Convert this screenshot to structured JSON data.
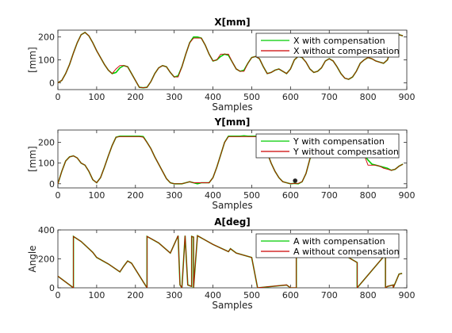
{
  "chart_data": [
    {
      "type": "line",
      "title": "X[mm]",
      "xlabel": "Samples",
      "ylabel": "[mm]",
      "xlim": [
        0,
        900
      ],
      "ylim": [
        -30,
        230
      ],
      "xticks": [
        0,
        100,
        200,
        300,
        400,
        500,
        600,
        700,
        800,
        900
      ],
      "yticks": [
        0,
        100,
        200
      ],
      "legend_position": "top-right",
      "grid": false,
      "series": [
        {
          "name": "X with compensation",
          "color": "#00cc00",
          "x": [
            0,
            10,
            20,
            30,
            40,
            50,
            60,
            70,
            80,
            90,
            100,
            110,
            120,
            130,
            140,
            150,
            160,
            170,
            180,
            190,
            200,
            210,
            220,
            230,
            240,
            250,
            260,
            270,
            280,
            290,
            300,
            310,
            320,
            330,
            340,
            350,
            360,
            370,
            380,
            390,
            400,
            410,
            420,
            430,
            440,
            450,
            460,
            470,
            480,
            490,
            500,
            510,
            520,
            530,
            540,
            550,
            560,
            570,
            580,
            590,
            600,
            610,
            620,
            630,
            640,
            650,
            660,
            670,
            680,
            690,
            700,
            710,
            720,
            730,
            740,
            750,
            760,
            770,
            780,
            790,
            800,
            810,
            820,
            830,
            840,
            850,
            860,
            870,
            880,
            890
          ],
          "values": [
            0,
            10,
            40,
            80,
            130,
            175,
            210,
            220,
            205,
            175,
            140,
            110,
            80,
            55,
            40,
            45,
            65,
            75,
            70,
            40,
            10,
            -20,
            -22,
            -20,
            5,
            40,
            65,
            75,
            70,
            45,
            25,
            30,
            70,
            125,
            175,
            200,
            200,
            195,
            165,
            125,
            95,
            100,
            115,
            125,
            120,
            90,
            60,
            50,
            55,
            85,
            110,
            115,
            105,
            70,
            40,
            45,
            55,
            60,
            50,
            40,
            60,
            100,
            115,
            110,
            90,
            60,
            45,
            50,
            65,
            95,
            105,
            95,
            70,
            40,
            20,
            15,
            25,
            50,
            85,
            100,
            110,
            105,
            95,
            90,
            85,
            100,
            150,
            200,
            210,
            205
          ]
        },
        {
          "name": "X without compensation",
          "color": "#cc0000",
          "x": [
            0,
            10,
            20,
            30,
            40,
            50,
            60,
            70,
            80,
            90,
            100,
            110,
            120,
            130,
            140,
            150,
            160,
            170,
            180,
            190,
            200,
            210,
            220,
            230,
            240,
            250,
            260,
            270,
            280,
            290,
            300,
            310,
            320,
            330,
            340,
            350,
            360,
            370,
            380,
            390,
            400,
            410,
            420,
            430,
            440,
            450,
            460,
            470,
            480,
            490,
            500,
            510,
            520,
            530,
            540,
            550,
            560,
            570,
            580,
            590,
            600,
            610,
            620,
            630,
            640,
            650,
            660,
            670,
            680,
            690,
            700,
            710,
            720,
            730,
            740,
            750,
            760,
            770,
            780,
            790,
            800,
            810,
            820,
            830,
            840,
            850,
            860,
            870,
            880,
            890
          ],
          "values": [
            0,
            10,
            40,
            80,
            130,
            175,
            210,
            220,
            205,
            175,
            140,
            110,
            80,
            55,
            40,
            60,
            75,
            75,
            70,
            40,
            10,
            -20,
            -22,
            -20,
            5,
            40,
            65,
            75,
            70,
            45,
            25,
            25,
            70,
            125,
            175,
            195,
            195,
            195,
            165,
            125,
            95,
            100,
            125,
            125,
            125,
            90,
            60,
            50,
            50,
            85,
            110,
            115,
            105,
            70,
            40,
            45,
            55,
            60,
            50,
            40,
            60,
            100,
            115,
            110,
            90,
            60,
            45,
            50,
            65,
            95,
            105,
            95,
            70,
            40,
            20,
            15,
            25,
            50,
            85,
            100,
            110,
            105,
            95,
            90,
            85,
            100,
            150,
            200,
            210,
            205
          ]
        }
      ]
    },
    {
      "type": "line",
      "title": "Y[mm]",
      "xlabel": "Samples",
      "ylabel": "[mm]",
      "xlim": [
        0,
        900
      ],
      "ylim": [
        -20,
        260
      ],
      "xticks": [
        0,
        100,
        200,
        300,
        400,
        500,
        600,
        700,
        800,
        900
      ],
      "yticks": [
        0,
        100,
        200
      ],
      "legend_position": "top-right",
      "grid": false,
      "series": [
        {
          "name": "Y with compensation",
          "color": "#00cc00",
          "x": [
            0,
            10,
            20,
            30,
            40,
            50,
            60,
            70,
            80,
            90,
            100,
            110,
            120,
            130,
            140,
            150,
            160,
            170,
            180,
            190,
            200,
            210,
            220,
            230,
            240,
            250,
            260,
            270,
            280,
            290,
            300,
            310,
            320,
            330,
            340,
            350,
            360,
            370,
            380,
            390,
            400,
            410,
            420,
            430,
            440,
            450,
            460,
            470,
            480,
            490,
            500,
            510,
            520,
            530,
            540,
            550,
            560,
            570,
            580,
            590,
            600,
            610,
            620,
            630,
            640,
            650,
            660,
            670,
            680,
            690,
            700,
            710,
            720,
            730,
            740,
            750,
            760,
            770,
            780,
            790,
            800,
            810,
            820,
            830,
            840,
            850,
            860,
            870,
            880,
            890
          ],
          "values": [
            0,
            60,
            110,
            130,
            135,
            125,
            100,
            90,
            60,
            20,
            5,
            30,
            80,
            135,
            185,
            225,
            230,
            230,
            230,
            230,
            230,
            230,
            228,
            200,
            170,
            130,
            95,
            60,
            25,
            5,
            0,
            0,
            0,
            5,
            10,
            5,
            0,
            5,
            5,
            5,
            30,
            80,
            140,
            200,
            230,
            230,
            230,
            230,
            232,
            230,
            230,
            230,
            228,
            200,
            150,
            100,
            60,
            30,
            10,
            5,
            0,
            2,
            0,
            10,
            50,
            120,
            170,
            210,
            230,
            232,
            230,
            232,
            230,
            235,
            230,
            200,
            175,
            160,
            150,
            140,
            115,
            95,
            90,
            85,
            80,
            75,
            65,
            70,
            85,
            95
          ]
        },
        {
          "name": "Y without compensation",
          "color": "#cc0000",
          "x": [
            0,
            10,
            20,
            30,
            40,
            50,
            60,
            70,
            80,
            90,
            100,
            110,
            120,
            130,
            140,
            150,
            160,
            170,
            180,
            190,
            200,
            210,
            220,
            230,
            240,
            250,
            260,
            270,
            280,
            290,
            300,
            310,
            320,
            330,
            340,
            350,
            360,
            370,
            380,
            390,
            400,
            410,
            420,
            430,
            440,
            450,
            460,
            470,
            480,
            490,
            500,
            510,
            520,
            530,
            540,
            550,
            560,
            570,
            580,
            590,
            600,
            610,
            620,
            630,
            640,
            650,
            660,
            670,
            680,
            690,
            700,
            710,
            720,
            730,
            740,
            750,
            760,
            770,
            780,
            790,
            800,
            810,
            820,
            830,
            840,
            850,
            860,
            870,
            880,
            890
          ],
          "values": [
            0,
            60,
            110,
            130,
            135,
            125,
            100,
            90,
            60,
            20,
            5,
            30,
            80,
            135,
            185,
            225,
            228,
            228,
            228,
            228,
            228,
            228,
            225,
            200,
            170,
            130,
            95,
            60,
            25,
            5,
            0,
            0,
            0,
            5,
            10,
            5,
            5,
            5,
            5,
            5,
            30,
            80,
            140,
            200,
            228,
            228,
            228,
            228,
            228,
            228,
            228,
            228,
            225,
            200,
            150,
            100,
            60,
            30,
            10,
            5,
            0,
            2,
            2,
            10,
            50,
            120,
            170,
            210,
            228,
            228,
            228,
            228,
            228,
            228,
            228,
            200,
            175,
            160,
            150,
            140,
            90,
            90,
            90,
            85,
            75,
            70,
            65,
            70,
            85,
            95
          ]
        }
      ],
      "markers": [
        {
          "x": 612,
          "y": 15
        }
      ]
    },
    {
      "type": "line",
      "title": "A[deg]",
      "xlabel": "Samples",
      "ylabel": "Angle",
      "xlim": [
        0,
        900
      ],
      "ylim": [
        0,
        400
      ],
      "xticks": [
        0,
        100,
        200,
        300,
        400,
        500,
        600,
        700,
        800,
        900
      ],
      "yticks": [
        0,
        200,
        400
      ],
      "legend_position": "top-right",
      "grid": false,
      "series": [
        {
          "name": "A with compensation",
          "color": "#00cc00",
          "x": [
            0,
            40,
            40,
            60,
            80,
            90,
            100,
            130,
            160,
            170,
            180,
            190,
            230,
            230,
            260,
            290,
            310,
            315,
            315,
            320,
            320,
            328,
            328,
            335,
            345,
            345,
            350,
            350,
            360,
            400,
            440,
            445,
            460,
            500,
            515,
            515,
            590,
            590,
            600,
            615,
            615,
            680,
            730,
            772,
            772,
            845,
            845,
            850,
            865,
            865,
            880,
            888
          ],
          "values": [
            80,
            0,
            355,
            320,
            270,
            245,
            210,
            165,
            110,
            150,
            185,
            170,
            0,
            355,
            310,
            240,
            360,
            20,
            20,
            0,
            0,
            360,
            360,
            20,
            10,
            355,
            350,
            0,
            360,
            300,
            250,
            270,
            240,
            210,
            0,
            0,
            20,
            20,
            0,
            0,
            360,
            320,
            240,
            175,
            0,
            230,
            0,
            10,
            20,
            0,
            95,
            100
          ]
        },
        {
          "name": "A without compensation",
          "color": "#cc0000",
          "x": [
            0,
            40,
            40,
            60,
            80,
            90,
            100,
            130,
            160,
            170,
            180,
            190,
            230,
            230,
            260,
            290,
            310,
            315,
            315,
            320,
            320,
            328,
            328,
            335,
            345,
            345,
            350,
            350,
            360,
            400,
            440,
            445,
            460,
            500,
            515,
            515,
            590,
            590,
            600,
            615,
            615,
            680,
            730,
            772,
            772,
            845,
            845,
            850,
            865,
            865,
            880,
            888
          ],
          "values": [
            80,
            0,
            355,
            320,
            270,
            245,
            210,
            165,
            110,
            150,
            185,
            170,
            0,
            355,
            310,
            240,
            360,
            20,
            20,
            0,
            0,
            360,
            360,
            20,
            10,
            355,
            350,
            0,
            360,
            300,
            250,
            270,
            240,
            210,
            0,
            0,
            20,
            20,
            0,
            0,
            360,
            320,
            240,
            175,
            0,
            230,
            0,
            10,
            20,
            0,
            95,
            100
          ]
        }
      ]
    }
  ]
}
